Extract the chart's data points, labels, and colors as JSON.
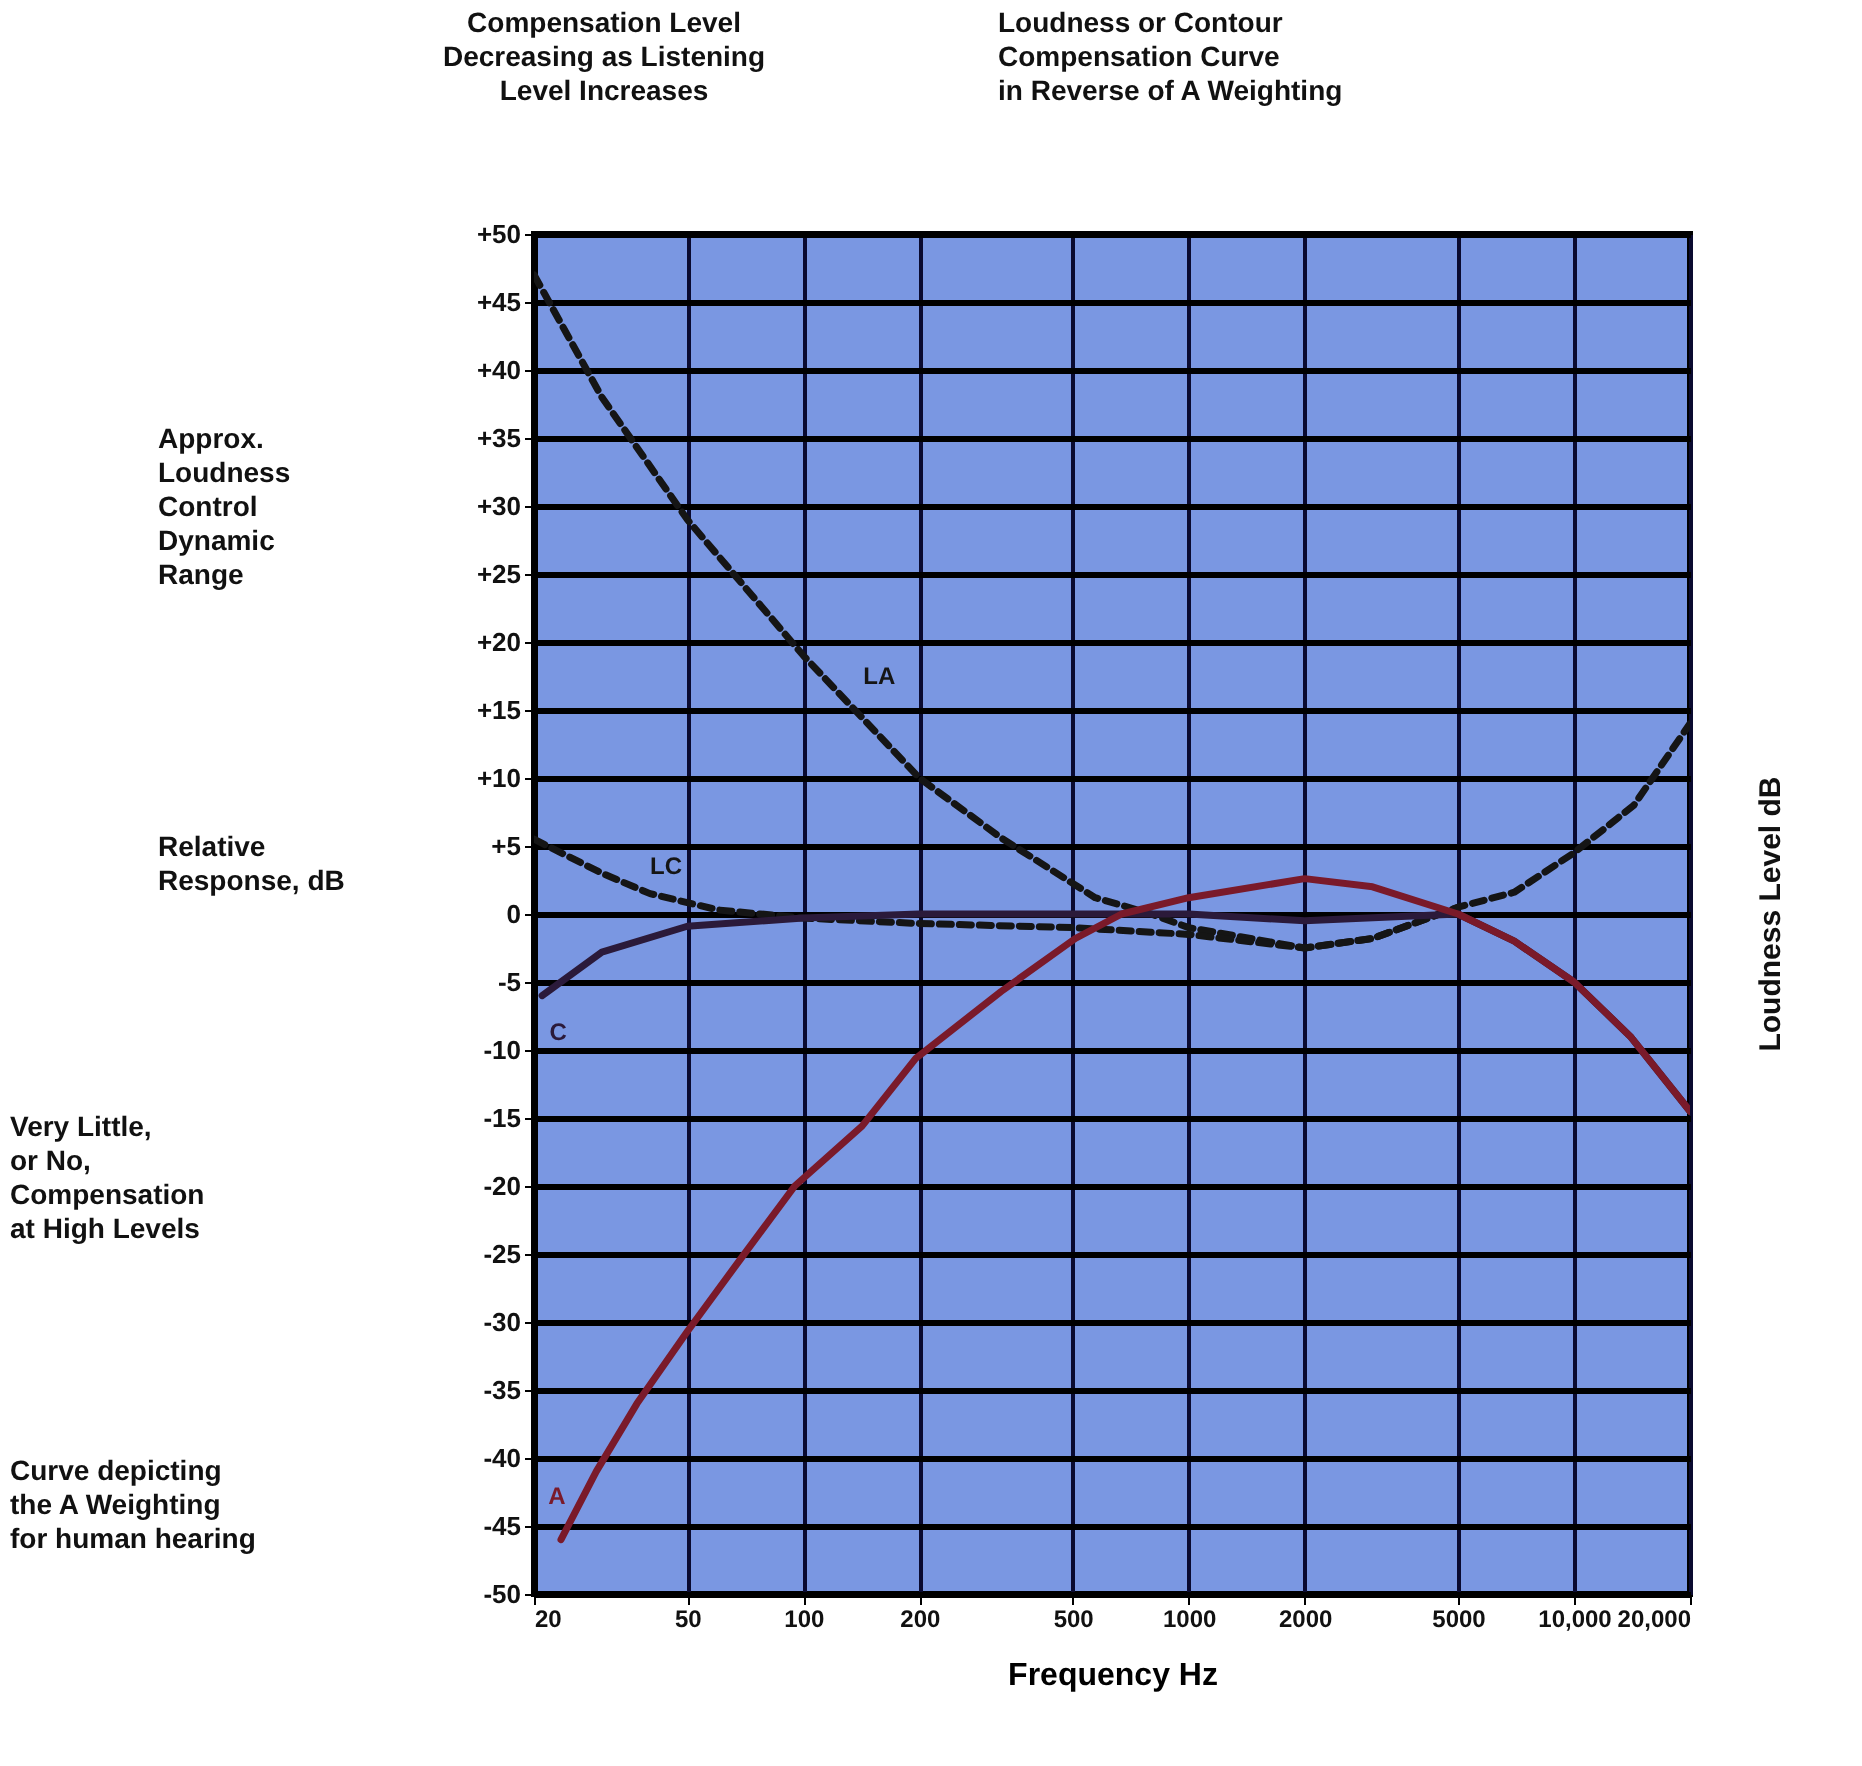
{
  "chart_data": {
    "type": "line",
    "xlabel": "Frequency Hz",
    "ylabel": "Loudness Level dB",
    "log": "x",
    "xlim": [
      20,
      20000
    ],
    "ylim": [
      -50,
      50
    ],
    "grid": true,
    "xticks": [
      20,
      50,
      100,
      200,
      500,
      1000,
      2000,
      5000,
      {
        "value": 10000,
        "label": "10,000"
      },
      {
        "value": 20000,
        "label": "20,000"
      }
    ],
    "yticks": [
      {
        "value": 50,
        "label": "+50"
      },
      {
        "value": 45,
        "label": "+45"
      },
      {
        "value": 40,
        "label": "+40"
      },
      {
        "value": 35,
        "label": "+35"
      },
      {
        "value": 30,
        "label": "+30"
      },
      {
        "value": 25,
        "label": "+25"
      },
      {
        "value": 20,
        "label": "+20"
      },
      {
        "value": 15,
        "label": "+15"
      },
      {
        "value": 10,
        "label": "+10"
      },
      {
        "value": 5,
        "label": "+5"
      },
      0,
      -5,
      -10,
      -15,
      -20,
      -25,
      -30,
      -35,
      -40,
      -45,
      -50
    ],
    "series": [
      {
        "name": "LA",
        "color": "#151515",
        "line_style": "dashed",
        "x": [
          20,
          30,
          50,
          100,
          200,
          326,
          572,
          800,
          1000,
          2000,
          3000,
          5000,
          7000,
          10000,
          14300,
          20000
        ],
        "values": [
          47,
          38,
          29,
          19,
          10,
          5.6,
          1.2,
          0,
          -1,
          -2.5,
          -1.8,
          0.5,
          1.6,
          4.5,
          8,
          14
        ]
      },
      {
        "name": "LC",
        "color": "#151515",
        "line_style": "dashed",
        "x": [
          20,
          30,
          40,
          60,
          100,
          200,
          500,
          1000,
          2000,
          3000,
          5000
        ],
        "values": [
          5.5,
          3,
          1.5,
          0.3,
          -0.3,
          -0.7,
          -1,
          -1.5,
          -2.5,
          -1.8,
          0.5
        ]
      },
      {
        "name": "C",
        "color": "#2b1a3a",
        "line_style": "solid",
        "x": [
          21,
          30,
          50,
          100,
          200,
          500,
          1000,
          2000,
          5000,
          7000,
          10000,
          14000,
          20000
        ],
        "values": [
          -6,
          -2.8,
          -0.9,
          -0.3,
          0,
          0,
          0,
          -0.5,
          0,
          -2,
          -5,
          -9,
          -14.5
        ]
      },
      {
        "name": "A",
        "color": "#7a1a2a",
        "line_style": "solid",
        "x": [
          23.5,
          29,
          37,
          50,
          69,
          95,
          142,
          196,
          326,
          508,
          670,
          1000,
          2000,
          3000,
          5000,
          7000,
          10000,
          14000,
          20000
        ],
        "values": [
          -46,
          -41,
          -36,
          -30.7,
          -25.3,
          -20,
          -15.6,
          -10.6,
          -5.7,
          -1.8,
          0,
          1.2,
          2.6,
          2,
          0,
          -2,
          -5,
          -9,
          -14.5
        ]
      }
    ],
    "annotations": [
      "Compensation Level\nDecreasing as Listening\nLevel Increases",
      "Loudness or Contour\nCompensation Curve\nin Reverse of A Weighting",
      "Approx.\nLoudness\nControl\nDynamic\nRange",
      "Relative\nResponse, dB",
      "Very Little,\nor No,\nCompensation\nat High Levels",
      "Curve depicting\nthe A Weighting\nfor human hearing"
    ]
  }
}
